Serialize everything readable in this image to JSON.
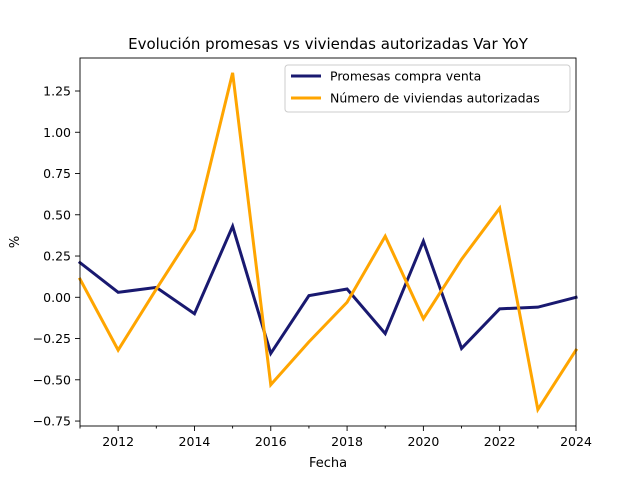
{
  "chart_data": {
    "type": "line",
    "title": "Evolución promesas vs viviendas autorizadas Var YoY",
    "xlabel": "Fecha",
    "ylabel": "%",
    "x": [
      2011,
      2012,
      2013,
      2014,
      2015,
      2016,
      2017,
      2018,
      2019,
      2020,
      2021,
      2022,
      2023,
      2024
    ],
    "xlim": [
      2011,
      2024
    ],
    "ylim": [
      -0.78,
      1.45
    ],
    "x_ticks": [
      2012,
      2014,
      2016,
      2018,
      2020,
      2022,
      2024
    ],
    "y_ticks": [
      -0.75,
      -0.5,
      -0.25,
      0.0,
      0.25,
      0.5,
      0.75,
      1.0,
      1.25
    ],
    "y_tick_labels": [
      "−0.75",
      "−0.50",
      "−0.25",
      "0.00",
      "0.25",
      "0.50",
      "0.75",
      "1.00",
      "1.25"
    ],
    "grid": false,
    "legend_position": "top-right",
    "series": [
      {
        "name": "Promesas compra venta",
        "color": "#191970",
        "values": [
          0.21,
          0.03,
          0.06,
          -0.1,
          0.43,
          -0.34,
          0.01,
          0.05,
          -0.22,
          0.34,
          -0.31,
          -0.07,
          -0.06,
          0.0
        ]
      },
      {
        "name": "Número de viviendas autorizadas",
        "color": "#FFA500",
        "values": [
          0.11,
          -0.32,
          0.05,
          0.41,
          1.36,
          -0.53,
          -0.27,
          -0.03,
          0.37,
          -0.13,
          0.23,
          0.54,
          -0.68,
          -0.32
        ]
      }
    ]
  }
}
